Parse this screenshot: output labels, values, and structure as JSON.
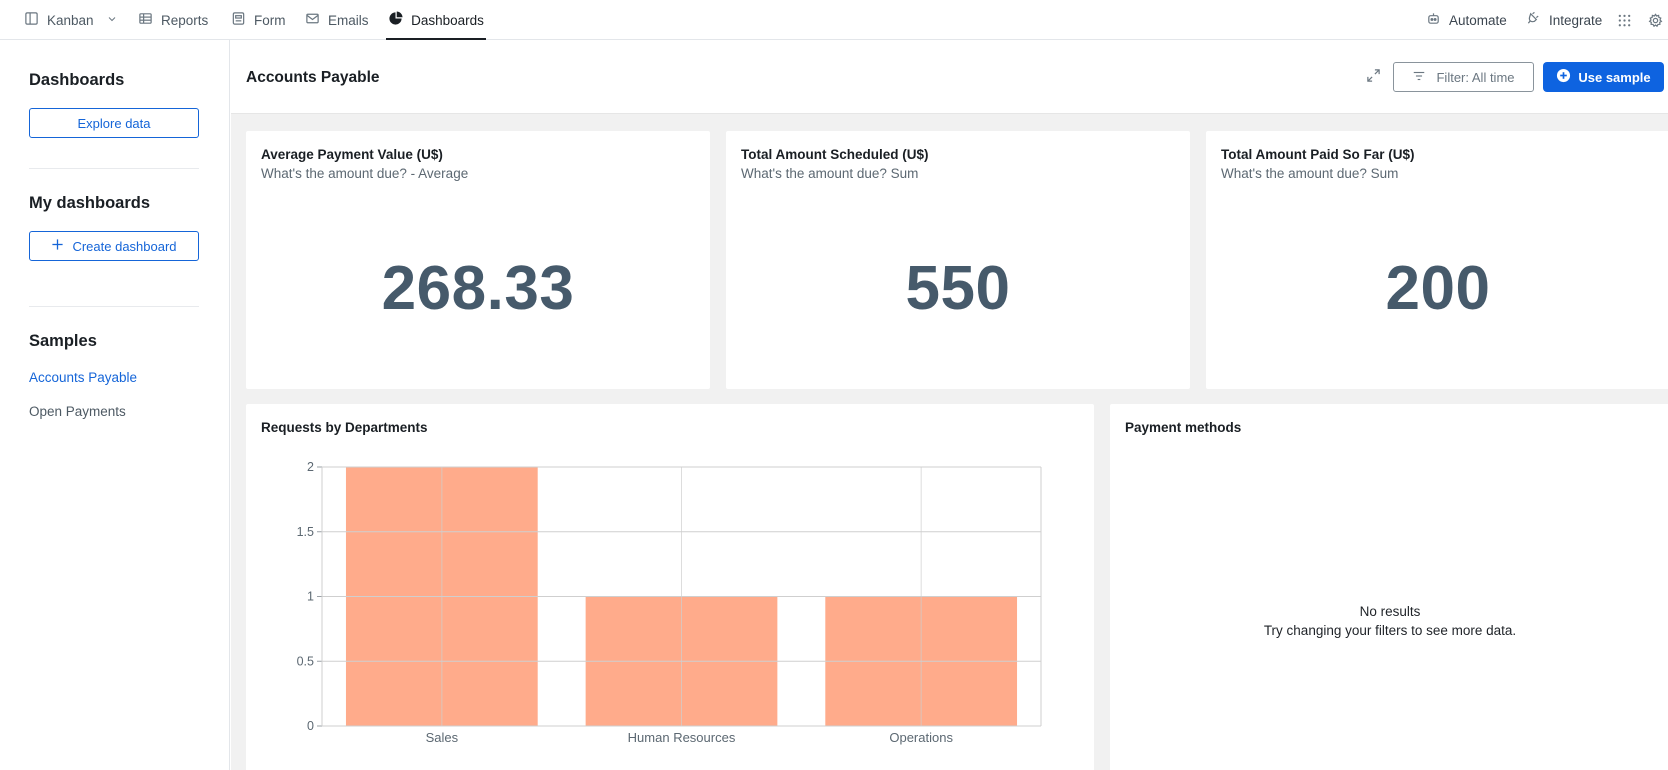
{
  "topnav": {
    "tabs": [
      {
        "label": "Kanban",
        "icon": "kanban-icon"
      },
      {
        "label": "Reports",
        "icon": "table-icon"
      },
      {
        "label": "Form",
        "icon": "form-icon"
      },
      {
        "label": "Emails",
        "icon": "mail-icon"
      },
      {
        "label": "Dashboards",
        "icon": "pie-chart-icon",
        "active": true
      }
    ],
    "automate_label": "Automate",
    "integrate_label": "Integrate"
  },
  "sidebar": {
    "dashboards_heading": "Dashboards",
    "explore_label": "Explore data",
    "my_dashboards_heading": "My dashboards",
    "create_label": "Create dashboard",
    "samples_heading": "Samples",
    "samples": [
      {
        "label": "Accounts Payable",
        "active": true
      },
      {
        "label": "Open Payments"
      }
    ]
  },
  "header": {
    "title": "Accounts Payable",
    "filter_label": "Filter: All time",
    "use_sample_label": "Use sample"
  },
  "kpis": [
    {
      "title": "Average Payment Value (U$)",
      "subtitle": "What's the amount due? - Average",
      "value": "268.33"
    },
    {
      "title": "Total Amount Scheduled (U$)",
      "subtitle": "What's the amount due? Sum",
      "value": "550"
    },
    {
      "title": "Total Amount Paid So Far (U$)",
      "subtitle": "What's the amount due? Sum",
      "value": "200"
    }
  ],
  "requests_card": {
    "title": "Requests by Departments"
  },
  "payment_card": {
    "title": "Payment methods",
    "empty_title": "No results",
    "empty_sub": "Try changing your filters to see more data."
  },
  "chart_data": {
    "type": "bar",
    "title": "Requests by Departments",
    "categories": [
      "Sales",
      "Human Resources",
      "Operations"
    ],
    "values": [
      2,
      1,
      1
    ],
    "ylim": [
      0,
      2
    ],
    "yticks": [
      "0",
      "0.5",
      "1",
      "1.5",
      "2"
    ],
    "grid": true,
    "bar_color": "#ffab8b"
  },
  "colors": {
    "accent": "#0e63e0",
    "link": "#1565d8",
    "kpi_text": "#465a6b"
  }
}
